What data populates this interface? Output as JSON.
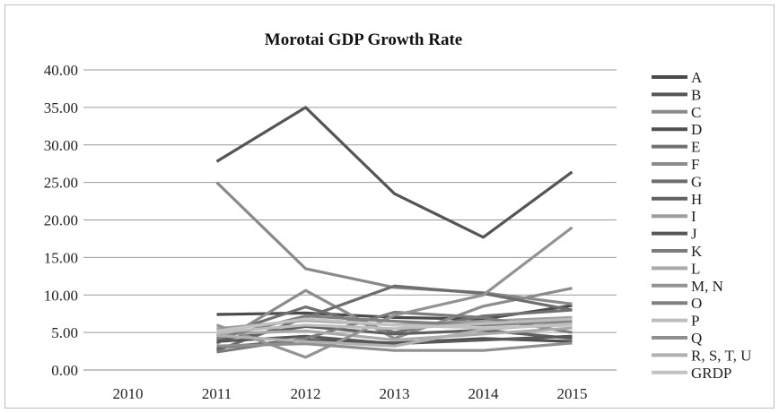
{
  "chart_data": {
    "type": "line",
    "title": "Morotai GDP Growth Rate",
    "xlabel": "",
    "ylabel": "",
    "categories": [
      "2010",
      "2011",
      "2012",
      "2013",
      "2014",
      "2015"
    ],
    "ylim": [
      0,
      40
    ],
    "yticks": [
      "0.00",
      "5.00",
      "10.00",
      "15.00",
      "20.00",
      "25.00",
      "30.00",
      "35.00",
      "40.00"
    ],
    "grid": true,
    "legend_position": "right",
    "series": [
      {
        "name": "A",
        "color": "#4a4a4a",
        "values": [
          null,
          7.4,
          7.6,
          7.0,
          6.8,
          8.6
        ]
      },
      {
        "name": "B",
        "color": "#555555",
        "values": [
          null,
          27.8,
          35.0,
          23.5,
          17.7,
          26.4
        ]
      },
      {
        "name": "C",
        "color": "#8a8a8a",
        "values": [
          null,
          25.0,
          13.5,
          11.0,
          10.3,
          8.8
        ]
      },
      {
        "name": "D",
        "color": "#4f4f4f",
        "values": [
          null,
          3.0,
          4.0,
          3.6,
          4.2,
          3.8
        ]
      },
      {
        "name": "E",
        "color": "#707070",
        "values": [
          null,
          4.5,
          8.4,
          5.0,
          7.2,
          8.0
        ]
      },
      {
        "name": "F",
        "color": "#8c8c8c",
        "values": [
          null,
          3.5,
          10.6,
          4.2,
          8.5,
          10.9
        ]
      },
      {
        "name": "G",
        "color": "#6d6d6d",
        "values": [
          null,
          2.6,
          7.0,
          11.2,
          10.2,
          8.0
        ]
      },
      {
        "name": "H",
        "color": "#606060",
        "values": [
          null,
          4.0,
          5.8,
          4.8,
          5.3,
          4.2
        ]
      },
      {
        "name": "I",
        "color": "#9e9e9e",
        "values": [
          null,
          5.5,
          6.6,
          6.0,
          6.5,
          7.0
        ]
      },
      {
        "name": "J",
        "color": "#585858",
        "values": [
          null,
          3.8,
          4.5,
          3.5,
          4.0,
          4.5
        ]
      },
      {
        "name": "K",
        "color": "#7c7c7c",
        "values": [
          null,
          2.4,
          4.2,
          7.7,
          7.0,
          5.0
        ]
      },
      {
        "name": "L",
        "color": "#aaaaaa",
        "values": [
          null,
          4.8,
          5.2,
          4.0,
          4.8,
          5.6
        ]
      },
      {
        "name": "M, N",
        "color": "#939393",
        "values": [
          null,
          6.0,
          1.7,
          7.3,
          10.0,
          19.0
        ]
      },
      {
        "name": "O",
        "color": "#808080",
        "values": [
          null,
          4.2,
          7.2,
          6.5,
          6.0,
          6.5
        ]
      },
      {
        "name": "P",
        "color": "#bdbdbd",
        "values": [
          null,
          5.0,
          6.0,
          5.5,
          6.2,
          6.8
        ]
      },
      {
        "name": "Q",
        "color": "#8f8f8f",
        "values": [
          null,
          3.2,
          3.5,
          2.6,
          2.6,
          3.6
        ]
      },
      {
        "name": "R, S, T, U",
        "color": "#b0b0b0",
        "values": [
          null,
          4.6,
          3.8,
          3.2,
          5.4,
          6.2
        ]
      },
      {
        "name": "GRDP",
        "color": "#c2c2c2",
        "values": [
          null,
          5.2,
          6.8,
          6.0,
          5.6,
          6.0
        ]
      }
    ]
  }
}
